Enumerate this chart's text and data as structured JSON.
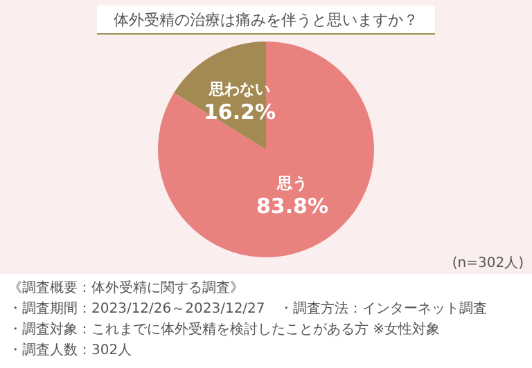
{
  "chart_data": {
    "type": "pie",
    "title": "体外受精の治療は痛みを伴うと思いますか？",
    "categories": [
      "思う",
      "思わない"
    ],
    "values": [
      83.8,
      16.2
    ],
    "colors": [
      "#e9817f",
      "#a38a52"
    ],
    "value_labels": [
      "83.8%",
      "16.2%"
    ],
    "annotations": [
      "(n=302人)",
      "《調査概要：体外受精に関する調査》",
      "・調査期間：2023/12/26～2023/12/27",
      "・調査方法：インターネット調査",
      "・調査対象：これまでに体外受精を検討したことがある方 ※女性対象",
      "・調査人数：302人"
    ]
  }
}
